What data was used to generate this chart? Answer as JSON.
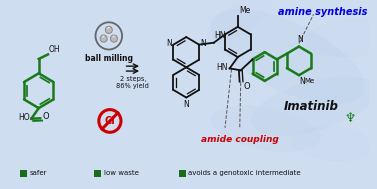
{
  "bg_color": "#cfddf0",
  "green": "#1a7a1a",
  "dark_green": "#1a6b1a",
  "red": "#cc0000",
  "blue": "#0000dd",
  "black": "#111111",
  "gray": "#888888",
  "footer_labels": [
    "safer",
    "low waste",
    "avoids a genotoxic intermediate"
  ],
  "ball_milling_text": "ball milling",
  "steps_text": "2 steps,\n86% yield",
  "amine_synthesis_text": "amine synthesis",
  "amide_coupling_text": "amide coupling",
  "imatinib_text": "Imatinib"
}
